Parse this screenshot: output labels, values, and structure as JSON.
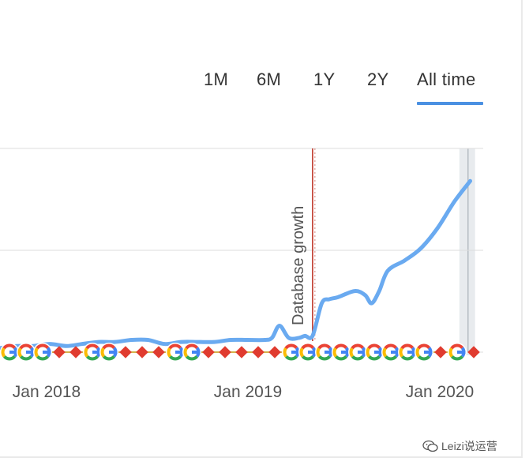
{
  "tabs": [
    {
      "label": "1M",
      "active": false
    },
    {
      "label": "6M",
      "active": false
    },
    {
      "label": "1Y",
      "active": false
    },
    {
      "label": "2Y",
      "active": false
    },
    {
      "label": "All time",
      "active": true
    }
  ],
  "colors": {
    "series": "#6aaaf0",
    "tab_active_underline": "#4a90e2",
    "annotation_line": "#c0392b",
    "marker_red": "#e03b2f",
    "highlight_band": "#e8ebee"
  },
  "chart_data": {
    "type": "line",
    "x_ticks": [
      "Jan 2018",
      "Jan 2019",
      "Jan 2020"
    ],
    "xlim": [
      "2017-10-15",
      "2020-03-25"
    ],
    "ylim": [
      0,
      100
    ],
    "grid": true,
    "annotation": {
      "x": "2019-05-15",
      "label": "Database growth"
    },
    "highlight_range": [
      "2020-02-10",
      "2020-03-10"
    ],
    "series": [
      {
        "x": [
          "2017-10-15",
          "2017-11-15",
          "2017-12-15",
          "2018-01-15",
          "2018-02-15",
          "2018-03-15",
          "2018-04-15",
          "2018-05-15",
          "2018-06-15",
          "2018-07-15",
          "2018-08-15",
          "2018-09-15",
          "2018-10-15",
          "2018-11-15",
          "2018-12-15",
          "2019-01-15",
          "2019-02-15",
          "2019-03-01",
          "2019-03-15",
          "2019-04-01",
          "2019-04-20",
          "2019-05-01",
          "2019-05-15",
          "2019-06-01",
          "2019-06-15",
          "2019-07-01",
          "2019-08-01",
          "2019-08-20",
          "2019-09-01",
          "2019-09-15",
          "2019-10-01",
          "2019-11-01",
          "2019-12-01",
          "2020-01-01",
          "2020-02-01",
          "2020-03-01"
        ],
        "y": [
          2,
          3,
          3,
          4,
          3,
          4,
          5,
          5,
          6,
          6,
          4,
          5,
          5,
          5,
          6,
          6,
          6,
          7,
          13,
          7,
          7,
          8,
          8,
          24,
          26,
          27,
          30,
          28,
          24,
          30,
          40,
          45,
          51,
          61,
          74,
          84
        ]
      }
    ],
    "markers": [
      "G",
      "G",
      "G",
      "diamond",
      "diamond",
      "G",
      "G",
      "diamond",
      "diamond",
      "diamond",
      "G",
      "G",
      "diamond",
      "diamond",
      "diamond",
      "diamond",
      "diamond",
      "G",
      "G",
      "G",
      "G",
      "G",
      "G",
      "G",
      "G",
      "G",
      "diamond",
      "G",
      "diamond"
    ]
  },
  "watermark": {
    "text": "Leizi说运营"
  }
}
